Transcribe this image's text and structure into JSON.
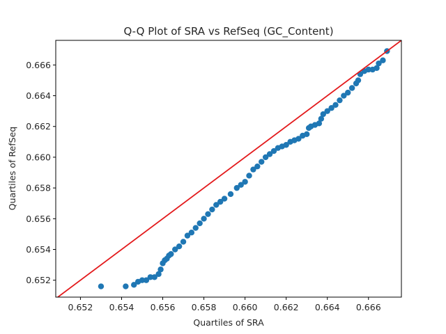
{
  "chart_data": {
    "type": "scatter",
    "title": "Q-Q Plot of SRA vs RefSeq (GC_Content)",
    "xlabel": "Quartiles of SRA",
    "ylabel": "Quartiles of RefSeq",
    "xlim": [
      0.6508,
      0.6676
    ],
    "ylim": [
      0.6509,
      0.6676
    ],
    "xticks": [
      0.652,
      0.654,
      0.656,
      0.658,
      0.66,
      0.662,
      0.664,
      0.666
    ],
    "yticks": [
      0.652,
      0.654,
      0.656,
      0.658,
      0.66,
      0.662,
      0.664,
      0.666
    ],
    "xtick_labels": [
      "0.652",
      "0.654",
      "0.656",
      "0.658",
      "0.660",
      "0.662",
      "0.664",
      "0.666"
    ],
    "ytick_labels": [
      "0.652",
      "0.654",
      "0.656",
      "0.658",
      "0.660",
      "0.662",
      "0.664",
      "0.666"
    ],
    "grid": false,
    "reference_line": {
      "type": "y=x",
      "color": "#e31a1c"
    },
    "series": [
      {
        "color": "#1f77b4",
        "points": [
          [
            0.653,
            0.6516
          ],
          [
            0.6542,
            0.6516
          ],
          [
            0.6546,
            0.6517
          ],
          [
            0.6548,
            0.6519
          ],
          [
            0.655,
            0.652
          ],
          [
            0.6552,
            0.652
          ],
          [
            0.6554,
            0.6522
          ],
          [
            0.6556,
            0.6522
          ],
          [
            0.6558,
            0.6524
          ],
          [
            0.6559,
            0.6527
          ],
          [
            0.656,
            0.6531
          ],
          [
            0.6561,
            0.6533
          ],
          [
            0.6562,
            0.6534
          ],
          [
            0.6563,
            0.6536
          ],
          [
            0.6564,
            0.6537
          ],
          [
            0.6566,
            0.654
          ],
          [
            0.6568,
            0.6542
          ],
          [
            0.657,
            0.6545
          ],
          [
            0.6572,
            0.6549
          ],
          [
            0.6574,
            0.6551
          ],
          [
            0.6576,
            0.6554
          ],
          [
            0.6578,
            0.6557
          ],
          [
            0.658,
            0.656
          ],
          [
            0.6582,
            0.6563
          ],
          [
            0.6584,
            0.6566
          ],
          [
            0.6586,
            0.6569
          ],
          [
            0.6588,
            0.6571
          ],
          [
            0.659,
            0.6573
          ],
          [
            0.6593,
            0.6576
          ],
          [
            0.6596,
            0.658
          ],
          [
            0.6598,
            0.6582
          ],
          [
            0.66,
            0.6584
          ],
          [
            0.6602,
            0.6588
          ],
          [
            0.6604,
            0.6592
          ],
          [
            0.6606,
            0.6594
          ],
          [
            0.6608,
            0.6597
          ],
          [
            0.661,
            0.66
          ],
          [
            0.6612,
            0.6602
          ],
          [
            0.6614,
            0.6604
          ],
          [
            0.6616,
            0.6606
          ],
          [
            0.6618,
            0.6607
          ],
          [
            0.662,
            0.6608
          ],
          [
            0.6622,
            0.661
          ],
          [
            0.6624,
            0.6611
          ],
          [
            0.6626,
            0.6612
          ],
          [
            0.6628,
            0.6614
          ],
          [
            0.663,
            0.6615
          ],
          [
            0.6631,
            0.6619
          ],
          [
            0.6632,
            0.662
          ],
          [
            0.6634,
            0.6621
          ],
          [
            0.6636,
            0.6622
          ],
          [
            0.6637,
            0.6625
          ],
          [
            0.6638,
            0.6628
          ],
          [
            0.664,
            0.663
          ],
          [
            0.6642,
            0.6632
          ],
          [
            0.6644,
            0.6634
          ],
          [
            0.6646,
            0.6637
          ],
          [
            0.6648,
            0.664
          ],
          [
            0.665,
            0.6642
          ],
          [
            0.6652,
            0.6645
          ],
          [
            0.6654,
            0.6648
          ],
          [
            0.6655,
            0.665
          ],
          [
            0.6656,
            0.6654
          ],
          [
            0.6658,
            0.6656
          ],
          [
            0.666,
            0.6657
          ],
          [
            0.6662,
            0.6657
          ],
          [
            0.6664,
            0.6658
          ],
          [
            0.6665,
            0.6661
          ],
          [
            0.6667,
            0.6663
          ],
          [
            0.6669,
            0.6669
          ]
        ]
      }
    ]
  }
}
